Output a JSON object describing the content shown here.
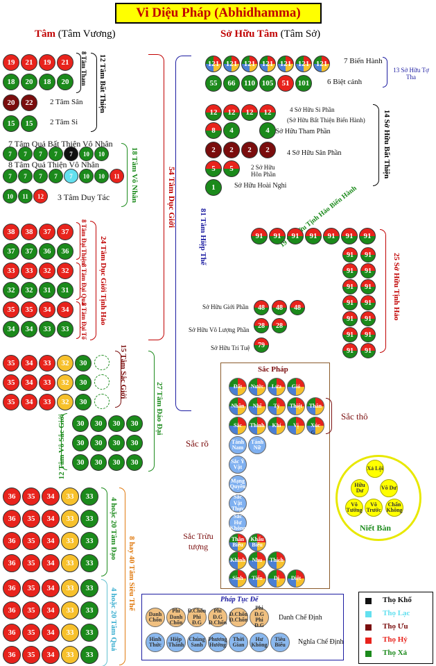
{
  "title": "Vi Diệu Pháp (Abhidhamma)",
  "left_head": {
    "main": "Tâm",
    "paren": "(Tâm Vương)"
  },
  "right_head": {
    "main": "Sở Hữu Tâm",
    "paren": "(Tâm Sở)"
  },
  "colors": {
    "red": "#e8231c",
    "green": "#1b8a1b",
    "darkred": "#7a0d0d",
    "yellow": "#f7c12c",
    "cyan": "#63e0ef",
    "black": "#111111"
  },
  "akusala": {
    "greed_nums": [
      "19",
      "21",
      "19",
      "21",
      "18",
      "20",
      "18",
      "20"
    ],
    "hate_nums": [
      "20",
      "22"
    ],
    "delusion_nums": [
      "15",
      "15"
    ],
    "label_greed": "8 Tâm Tham",
    "label_hate": "2 Tâm Sân",
    "label_delusion": "2 Tâm Si",
    "label_total": "12 Tâm Bất Thiện"
  },
  "ahetuka": {
    "row1_label": "7 Tâm Quả Bất Thiện Vô Nhân",
    "row1_nums": [
      "7",
      "7",
      "7",
      "7",
      "7",
      "10",
      "10"
    ],
    "row2_label": "8 Tâm Quả Thiện Vô Nhân",
    "row2_nums": [
      "7",
      "7",
      "7",
      "7",
      "7",
      "10",
      "10",
      "11"
    ],
    "row3_nums": [
      "10",
      "11",
      "12"
    ],
    "row3_label": "3 Tâm Duy Tác",
    "total": "18 Tâm Vô Nhân"
  },
  "kama": {
    "rows": [
      [
        "38",
        "38",
        "37",
        "37"
      ],
      [
        "37",
        "37",
        "36",
        "36"
      ],
      [
        "33",
        "33",
        "32",
        "32"
      ],
      [
        "32",
        "32",
        "31",
        "31"
      ],
      [
        "35",
        "35",
        "34",
        "34"
      ],
      [
        "34",
        "34",
        "33",
        "33"
      ]
    ],
    "l1": "8 Tâm Đại Thiện",
    "l2": "8 Tâm Đại Quả",
    "l3": "8 Tâm Đại Tố",
    "total": "24 Tâm Dục Giới Tịnh Hảo",
    "big": "54 Tâm Dục Giới"
  },
  "rupa": {
    "rows": [
      [
        "35",
        "34",
        "33",
        "32",
        "30"
      ],
      [
        "35",
        "34",
        "33",
        "32",
        "30"
      ],
      [
        "35",
        "34",
        "33",
        "32",
        "30"
      ]
    ],
    "label": "15 Tâm Sắc Giới"
  },
  "arupa": {
    "rows": [
      [
        "30",
        "30",
        "30",
        "30"
      ],
      [
        "30",
        "30",
        "30",
        "30"
      ],
      [
        "30",
        "30",
        "30",
        "30"
      ]
    ],
    "label": "12 Tâm Vô Sắc Giới",
    "total": "27 Tâm Đáo Đại"
  },
  "magga": {
    "rows": [
      [
        "36",
        "35",
        "34",
        "33",
        "33"
      ],
      [
        "36",
        "35",
        "34",
        "33",
        "33"
      ],
      [
        "36",
        "35",
        "34",
        "33",
        "33"
      ],
      [
        "36",
        "35",
        "34",
        "33",
        "33"
      ]
    ],
    "label": "4 hoặc 20 Tâm Đạo"
  },
  "phala": {
    "rows": [
      [
        "36",
        "35",
        "34",
        "33",
        "33"
      ],
      [
        "36",
        "35",
        "34",
        "33",
        "33"
      ],
      [
        "36",
        "35",
        "34",
        "33",
        "33"
      ],
      [
        "36",
        "35",
        "34",
        "33",
        "33"
      ]
    ],
    "label": "4 hoặc 20 Tâm Quả",
    "total": "8 hay 40 Tâm Siêu Thế"
  },
  "cetasika": {
    "row1": [
      "121",
      "121",
      "121",
      "121",
      "121",
      "121",
      "121"
    ],
    "row1_label": "7 Biến Hành",
    "row2": [
      "55",
      "66",
      "110",
      "105",
      "51",
      "101"
    ],
    "row2_label": "6 Biệt cảnh",
    "common_label": "13 Sở Hữu Tợ Tha",
    "moha": [
      "12",
      "12",
      "12",
      "12"
    ],
    "moha_label": "4 Sở Hữu Si Phần",
    "moha_sub": "(Sở Hữu Bất Thiện Biến Hành)",
    "lobha": [
      "8",
      "4",
      "4"
    ],
    "lobha_label": "3 Sở Hữu Tham Phần",
    "dosa": [
      "2",
      "2",
      "2",
      "2"
    ],
    "dosa_label": "4 Sở Hữu Sân Phần",
    "thina": [
      "5",
      "5"
    ],
    "thina_label": "2 Sở Hữu Hôn Phần",
    "doubt": [
      "1"
    ],
    "doubt_label": "Sở Hữu Hoài Nghi",
    "akusala_total": "14 Sở Hữu Bất Thiện",
    "top": [
      "91",
      "91",
      "91",
      "91",
      "91",
      "91",
      "91"
    ],
    "col": [
      "91",
      "91",
      "91",
      "91",
      "91",
      "91",
      "91"
    ],
    "sobhana_common": "19 Sở Hữu Tịnh Hảo Biến Hành",
    "abst": [
      "48",
      "48",
      "48"
    ],
    "abst_label": "Sở Hữu Giới Phần",
    "appa": [
      "28",
      "28"
    ],
    "appa_label": "Sở Hữu Vô Lượng Phần",
    "panna": [
      "79"
    ],
    "panna_label": "Sở Hữu Trí Tuệ",
    "sobhana_total": "25 Sở Hữu Tịnh Hảo",
    "all_total": "81 Tâm Hiệp Thế"
  },
  "rupa_matter": {
    "title": "Sắc Pháp",
    "r1": [
      "Đất",
      "Nước",
      "Lửa",
      "Gió"
    ],
    "r2": [
      "Nhãn",
      "Nhĩ",
      "Tỷ",
      "Thiệt",
      "Thân"
    ],
    "r3": [
      "Sắc",
      "Thinh",
      "Khí",
      "Vị",
      "Xúc"
    ],
    "r4": [
      "Tánh Nam",
      "Tánh Nữ"
    ],
    "col": [
      "Sắc Ý Vật",
      "Mạng Quyền",
      "Sắc Vật Thực",
      "Sắc Hư Không"
    ],
    "r5": [
      "Thân Biểu",
      "Khẩu Biểu"
    ],
    "r6": [
      "Khinh",
      "Nhu",
      "Thích"
    ],
    "r7": [
      "Sinh",
      "Tiến",
      "Dị",
      "Diệt"
    ],
    "label_tho": "Sắc thô",
    "label_ro": "Sắc rõ",
    "label_truu": "Sắc Trừu tượng",
    "xuc_sub": "G"
  },
  "nibbana": {
    "items": [
      "Xả Lội",
      "Hữu Dư",
      "Vô Dư",
      "Vô Tướng",
      "Vô Trước",
      "Chẩn Không"
    ],
    "label": "Niết Bàn"
  },
  "pannatti": {
    "title": "Pháp Tục Đế",
    "r1": [
      "Danh Chốn",
      "Phi Danh Chốn",
      "Đ.Chốn Phi Đ.G",
      "Phi Đ.G Đ.Chốn",
      "Đ.Chốn Đ.Chốn",
      "Phi Đ.G Phi Đ.G"
    ],
    "r1_label": "Danh Chế Định",
    "r2": [
      "Hình Thức",
      "Hiệp Thành",
      "Chúng Sanh",
      "Phương Hướng",
      "Thời Gian",
      "Hư Không",
      "Tiêu Biểu"
    ],
    "r2_label": "Nghĩa Chế Định"
  },
  "legend": [
    {
      "label": "Thọ Khổ",
      "color": "#111111"
    },
    {
      "label": "Thọ Lạc",
      "color": "#63e0ef"
    },
    {
      "label": "Thọ Ưu",
      "color": "#7a0d0d"
    },
    {
      "label": "Thọ Hỷ",
      "color": "#e8231c"
    },
    {
      "label": "Thọ Xả",
      "color": "#1b8a1b"
    }
  ]
}
